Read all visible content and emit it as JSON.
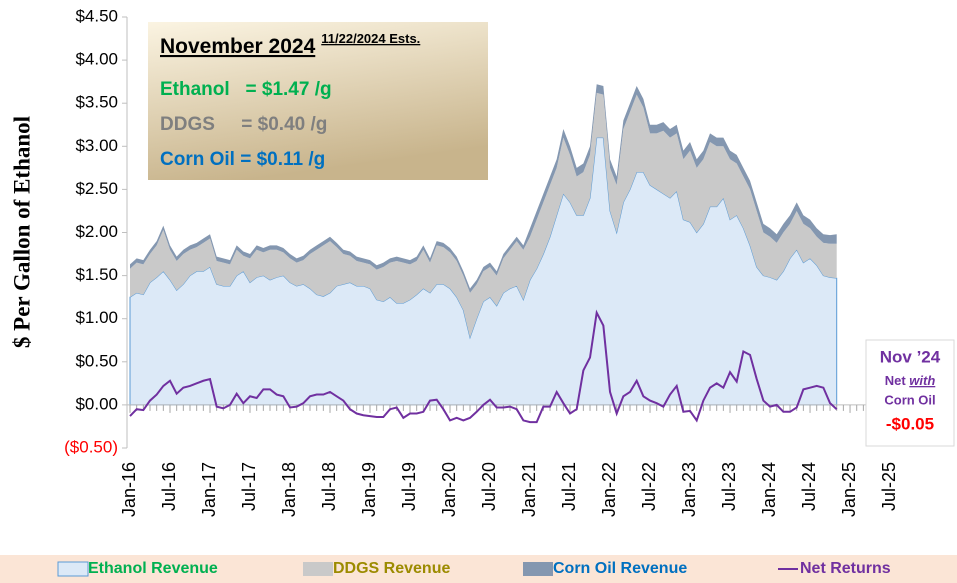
{
  "chart_data": {
    "type": "stacked_area",
    "y_label": "$ Per Gallon of Ethanol",
    "categories": [
      "Jan-16",
      null,
      null,
      null,
      null,
      null,
      "Jul-16",
      null,
      null,
      null,
      null,
      null,
      "Jan-17",
      null,
      null,
      null,
      null,
      null,
      "Jul-17",
      null,
      null,
      null,
      null,
      null,
      "Jan-18",
      null,
      null,
      null,
      null,
      null,
      "Jul-18",
      null,
      null,
      null,
      null,
      null,
      "Jan-19",
      null,
      null,
      null,
      null,
      null,
      "Jul-19",
      null,
      null,
      null,
      null,
      null,
      "Jan-20",
      null,
      null,
      null,
      null,
      null,
      "Jul-20",
      null,
      null,
      null,
      null,
      null,
      "Jan-21",
      null,
      null,
      null,
      null,
      null,
      "Jul-21",
      null,
      null,
      null,
      null,
      null,
      "Jan-22",
      null,
      null,
      null,
      null,
      null,
      "Jul-22",
      null,
      null,
      null,
      null,
      null,
      "Jan-23",
      null,
      null,
      null,
      null,
      null,
      "Jul-23",
      null,
      null,
      null,
      null,
      null,
      "Jan-24",
      null,
      null,
      null,
      null,
      null,
      "Jul-24",
      null,
      null,
      null,
      null,
      null,
      "Jan-25",
      null,
      null,
      null,
      null,
      null,
      "Jul-25",
      null,
      null,
      null,
      null,
      null
    ],
    "ylim": [
      -0.5,
      4.5
    ],
    "yticks": [
      {
        "value": -0.5,
        "label": "($0.50)"
      },
      {
        "value": 0,
        "label": "$0.00"
      },
      {
        "value": 0.5,
        "label": "$0.50"
      },
      {
        "value": 1,
        "label": "$1.00"
      },
      {
        "value": 1.5,
        "label": "$1.50"
      },
      {
        "value": 2,
        "label": "$2.00"
      },
      {
        "value": 2.5,
        "label": "$2.50"
      },
      {
        "value": 3,
        "label": "$3.00"
      },
      {
        "value": 3.5,
        "label": "$3.50"
      },
      {
        "value": 4,
        "label": "$4.00"
      },
      {
        "value": 4.5,
        "label": "$4.50"
      }
    ],
    "grid": false,
    "series": [
      {
        "name": "Ethanol Revenue",
        "kind": "area",
        "color": "#dce9f7",
        "label_color": "#00b050",
        "values": [
          1.25,
          1.3,
          1.28,
          1.42,
          1.48,
          1.55,
          1.45,
          1.33,
          1.4,
          1.5,
          1.55,
          1.55,
          1.6,
          1.4,
          1.38,
          1.38,
          1.5,
          1.55,
          1.42,
          1.48,
          1.5,
          1.45,
          1.48,
          1.5,
          1.42,
          1.38,
          1.4,
          1.35,
          1.28,
          1.26,
          1.3,
          1.38,
          1.4,
          1.42,
          1.38,
          1.38,
          1.35,
          1.22,
          1.2,
          1.25,
          1.18,
          1.18,
          1.22,
          1.28,
          1.35,
          1.3,
          1.4,
          1.4,
          1.35,
          1.25,
          1.1,
          0.78,
          1.0,
          1.2,
          1.25,
          1.15,
          1.3,
          1.35,
          1.38,
          1.22,
          1.45,
          1.58,
          1.75,
          1.95,
          2.2,
          2.45,
          2.35,
          2.2,
          2.2,
          2.4,
          3.1,
          3.1,
          2.25,
          2.0,
          2.35,
          2.5,
          2.7,
          2.7,
          2.55,
          2.5,
          2.45,
          2.4,
          2.48,
          2.15,
          2.12,
          2.0,
          2.1,
          2.3,
          2.3,
          2.4,
          2.15,
          2.2,
          2.05,
          1.85,
          1.6,
          1.5,
          1.48,
          1.45,
          1.55,
          1.7,
          1.8,
          1.65,
          1.7,
          1.62,
          1.5,
          1.48,
          1.47,
          null,
          null,
          null,
          null,
          null,
          null,
          null,
          null,
          null,
          null,
          null,
          null,
          null
        ]
      },
      {
        "name": "DDGS Revenue",
        "kind": "area",
        "color": "#c9c9c9",
        "label_color": "#9c8b00",
        "values": [
          0.33,
          0.35,
          0.35,
          0.33,
          0.37,
          0.48,
          0.35,
          0.34,
          0.35,
          0.3,
          0.28,
          0.33,
          0.33,
          0.27,
          0.27,
          0.25,
          0.3,
          0.18,
          0.28,
          0.32,
          0.27,
          0.35,
          0.32,
          0.27,
          0.28,
          0.27,
          0.28,
          0.4,
          0.52,
          0.59,
          0.6,
          0.45,
          0.35,
          0.31,
          0.29,
          0.27,
          0.28,
          0.35,
          0.4,
          0.4,
          0.49,
          0.47,
          0.41,
          0.39,
          0.45,
          0.35,
          0.45,
          0.43,
          0.42,
          0.42,
          0.4,
          0.52,
          0.4,
          0.35,
          0.35,
          0.35,
          0.4,
          0.45,
          0.52,
          0.58,
          0.5,
          0.57,
          0.6,
          0.6,
          0.55,
          0.65,
          0.55,
          0.45,
          0.5,
          0.5,
          0.52,
          0.5,
          0.5,
          0.55,
          0.85,
          0.9,
          0.9,
          0.75,
          0.6,
          0.65,
          0.73,
          0.7,
          0.67,
          0.7,
          0.83,
          0.75,
          0.75,
          0.75,
          0.7,
          0.6,
          0.7,
          0.6,
          0.6,
          0.65,
          0.65,
          0.5,
          0.47,
          0.43,
          0.45,
          0.4,
          0.45,
          0.45,
          0.35,
          0.33,
          0.38,
          0.39,
          0.4,
          null,
          null,
          null,
          null,
          null,
          null,
          null,
          null,
          null,
          null,
          null,
          null,
          null
        ]
      },
      {
        "name": "Corn Oil Revenue",
        "kind": "area",
        "color": "#8497b0",
        "label_color": "#0070c0",
        "values": [
          0.05,
          0.05,
          0.05,
          0.05,
          0.05,
          0.05,
          0.05,
          0.05,
          0.05,
          0.05,
          0.05,
          0.05,
          0.05,
          0.05,
          0.05,
          0.05,
          0.05,
          0.05,
          0.05,
          0.05,
          0.05,
          0.05,
          0.05,
          0.05,
          0.05,
          0.05,
          0.05,
          0.05,
          0.05,
          0.05,
          0.05,
          0.05,
          0.05,
          0.05,
          0.05,
          0.05,
          0.05,
          0.05,
          0.05,
          0.05,
          0.05,
          0.05,
          0.05,
          0.05,
          0.05,
          0.05,
          0.05,
          0.05,
          0.05,
          0.05,
          0.05,
          0.05,
          0.05,
          0.05,
          0.05,
          0.05,
          0.05,
          0.05,
          0.05,
          0.05,
          0.1,
          0.1,
          0.1,
          0.1,
          0.1,
          0.1,
          0.1,
          0.1,
          0.1,
          0.1,
          0.1,
          0.1,
          0.1,
          0.1,
          0.1,
          0.1,
          0.1,
          0.1,
          0.1,
          0.1,
          0.1,
          0.1,
          0.1,
          0.1,
          0.1,
          0.1,
          0.1,
          0.1,
          0.1,
          0.1,
          0.1,
          0.1,
          0.1,
          0.1,
          0.1,
          0.1,
          0.1,
          0.1,
          0.1,
          0.1,
          0.1,
          0.1,
          0.1,
          0.1,
          0.1,
          0.1,
          0.11,
          null,
          null,
          null,
          null,
          null,
          null,
          null,
          null,
          null,
          null,
          null,
          null,
          null
        ]
      },
      {
        "name": "Net Returns",
        "kind": "line",
        "color": "#7030a0",
        "label_color": "#7030a0",
        "values": [
          -0.13,
          -0.05,
          -0.06,
          0.05,
          0.12,
          0.22,
          0.28,
          0.13,
          0.2,
          0.22,
          0.25,
          0.28,
          0.3,
          -0.02,
          -0.04,
          0.0,
          0.13,
          0.02,
          0.1,
          0.08,
          0.18,
          0.18,
          0.12,
          0.1,
          -0.03,
          -0.02,
          0.02,
          0.1,
          0.12,
          0.12,
          0.15,
          0.1,
          0.05,
          -0.05,
          -0.1,
          -0.12,
          -0.13,
          -0.14,
          -0.14,
          -0.05,
          -0.03,
          -0.15,
          -0.1,
          -0.1,
          -0.08,
          0.05,
          0.06,
          -0.05,
          -0.18,
          -0.15,
          -0.18,
          -0.15,
          -0.08,
          0.0,
          0.06,
          -0.03,
          -0.03,
          -0.02,
          -0.05,
          -0.18,
          -0.2,
          -0.2,
          -0.02,
          -0.02,
          0.15,
          0.02,
          -0.1,
          -0.05,
          0.4,
          0.55,
          1.07,
          0.92,
          0.15,
          -0.1,
          0.1,
          0.15,
          0.28,
          0.1,
          0.05,
          0.02,
          -0.02,
          0.12,
          0.22,
          -0.08,
          -0.07,
          -0.18,
          0.05,
          0.2,
          0.25,
          0.2,
          0.38,
          0.27,
          0.62,
          0.58,
          0.3,
          0.05,
          -0.02,
          0.0,
          -0.08,
          -0.08,
          -0.03,
          0.18,
          0.2,
          0.22,
          0.2,
          0.02,
          -0.05,
          null,
          null,
          null,
          null,
          null,
          null,
          null,
          null,
          null,
          null,
          null,
          null,
          null
        ]
      }
    ],
    "info_box": {
      "title": "November 2024",
      "date_note": "11/22/2024 Ests.",
      "lines": [
        "Ethanol   = $1.47 /g",
        "DDGS     = $0.40 /g",
        "Corn Oil = $0.11 /g"
      ]
    },
    "net_note": {
      "period": "Nov ’24",
      "net": "Net",
      "with": "with",
      "basis": "Corn Oil",
      "value": "-$0.05"
    }
  }
}
